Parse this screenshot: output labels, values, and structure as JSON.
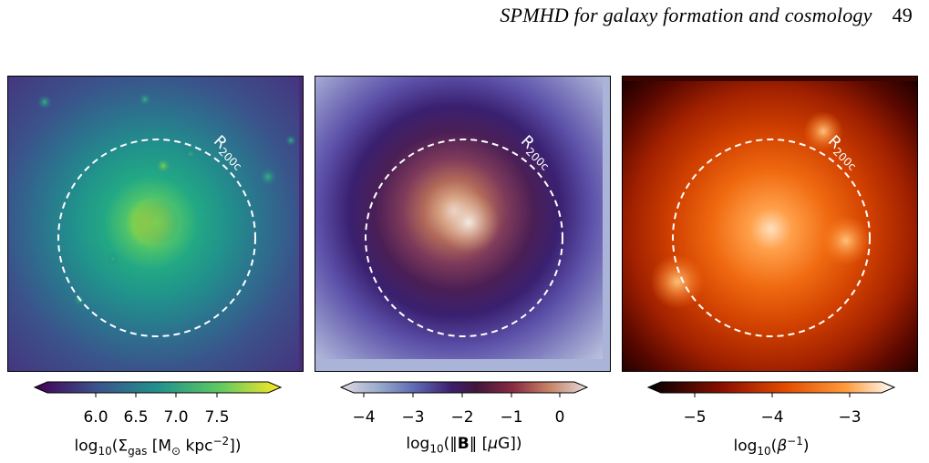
{
  "header": {
    "running_title": "SPMHD for galaxy formation and cosmology",
    "page_number": "49"
  },
  "panels": [
    {
      "circle_label": "R",
      "circle_label_sub": "200c",
      "colormap": "viridis",
      "colorbar": {
        "ticks": [
          "6.0",
          "6.5",
          "7.0",
          "7.5"
        ],
        "label_prefix": "log",
        "label_sub": "10",
        "label_open": "(Σ",
        "label_sigma_sub": "gas",
        "label_units": " [M",
        "label_sun": "⊙",
        "label_units2": " kpc",
        "label_exp": "−2",
        "label_close": "])"
      }
    },
    {
      "circle_label": "R",
      "circle_label_sub": "200c",
      "colormap": "twilight",
      "colorbar": {
        "ticks": [
          "−4",
          "−3",
          "−2",
          "−1",
          "0"
        ],
        "label_prefix": "log",
        "label_sub": "10",
        "label_open": "(‖",
        "label_bold": "B",
        "label_mid": "‖ [",
        "label_mu": "μ",
        "label_close": "G])"
      }
    },
    {
      "circle_label": "R",
      "circle_label_sub": "200c",
      "colormap": "gist_heat",
      "colorbar": {
        "ticks": [
          "−5",
          "−4",
          "−3"
        ],
        "label_prefix": "log",
        "label_sub": "10",
        "label_open": "(",
        "label_beta": "β",
        "label_exp": "−1",
        "label_close": ")"
      }
    }
  ]
}
